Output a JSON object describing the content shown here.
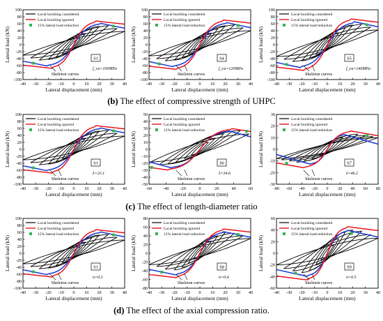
{
  "captions": [
    {
      "letter": "(b)",
      "text": "The effect of compressive strength of UHPC"
    },
    {
      "letter": "(c)",
      "text": "The effect of length-diameter ratio"
    },
    {
      "letter": "(d)",
      "text": "The effect of the axial compression ratio."
    }
  ],
  "legend": {
    "considered": "Local buckling considered",
    "ignored": "Local buckling ignored",
    "reduction": "15% lateral load reduction"
  },
  "axis": {
    "xlabel": "Lateral displacement (mm)",
    "ylabel": "Lateral load (kN)"
  },
  "skeleton_label": "Skeleton curves",
  "colors": {
    "considered": "#000000",
    "ignored": "#e8141c",
    "skeleton": "#1f3fd6",
    "reduction": "#2db84a"
  },
  "chart_data": [
    {
      "type": "line",
      "specimen": "S1",
      "param": "f_cu=100MPa",
      "xlim": [
        -40,
        40
      ],
      "ylim": [
        -100,
        100
      ],
      "xticks": [
        -40,
        -30,
        -20,
        -10,
        0,
        10,
        20,
        30,
        40
      ],
      "yticks": [
        -100,
        -80,
        -60,
        -40,
        -20,
        0,
        20,
        40,
        60,
        80,
        100
      ],
      "peak": 62,
      "peak_x": 20,
      "ignored_peak": 68,
      "ignored_peak_x": 17,
      "loops": [
        [
          -5,
          5,
          18,
          14
        ],
        [
          -9,
          9,
          32,
          26
        ],
        [
          -14,
          14,
          44,
          36
        ],
        [
          -20,
          20,
          52,
          42
        ],
        [
          -27,
          27,
          54,
          44
        ],
        [
          -34,
          34,
          46,
          38
        ],
        [
          -40,
          40,
          38,
          30
        ]
      ],
      "reduction_points": [
        {
          "x": 31,
          "y": 53
        },
        {
          "x": -32,
          "y": -53
        }
      ]
    },
    {
      "type": "line",
      "specimen": "S4",
      "param": "f_cu=120MPa",
      "xlim": [
        -40,
        40
      ],
      "ylim": [
        -100,
        100
      ],
      "xticks": [
        -40,
        -30,
        -20,
        -10,
        0,
        10,
        20,
        30,
        40
      ],
      "yticks": [
        -100,
        -80,
        -60,
        -40,
        -20,
        0,
        20,
        40,
        60,
        80,
        100
      ],
      "peak": 64,
      "peak_x": 20,
      "ignored_peak": 71,
      "ignored_peak_x": 18,
      "loops": [
        [
          -5,
          5,
          19,
          15
        ],
        [
          -9,
          9,
          33,
          27
        ],
        [
          -14,
          14,
          45,
          37
        ],
        [
          -20,
          20,
          54,
          44
        ],
        [
          -27,
          27,
          56,
          46
        ],
        [
          -34,
          34,
          48,
          40
        ],
        [
          -40,
          40,
          40,
          32
        ]
      ],
      "reduction_points": [
        {
          "x": 30,
          "y": 55
        },
        {
          "x": -32,
          "y": -55
        }
      ]
    },
    {
      "type": "line",
      "specimen": "S5",
      "param": "f_cu=140MPa",
      "xlim": [
        -40,
        40
      ],
      "ylim": [
        -100,
        100
      ],
      "xticks": [
        -40,
        -30,
        -20,
        -10,
        0,
        10,
        20,
        30,
        40
      ],
      "yticks": [
        -100,
        -80,
        -60,
        -40,
        -20,
        0,
        20,
        40,
        60,
        80,
        100
      ],
      "peak": 66,
      "peak_x": 21,
      "ignored_peak": 74,
      "ignored_peak_x": 18,
      "loops": [
        [
          -5,
          5,
          20,
          16
        ],
        [
          -9,
          9,
          34,
          28
        ],
        [
          -14,
          14,
          47,
          38
        ],
        [
          -20,
          20,
          56,
          46
        ],
        [
          -27,
          27,
          58,
          48
        ],
        [
          -34,
          34,
          50,
          42
        ],
        [
          -40,
          40,
          42,
          34
        ]
      ],
      "reduction_points": [
        {
          "x": 31,
          "y": 57
        },
        {
          "x": -32,
          "y": -57
        }
      ]
    },
    {
      "type": "line",
      "specimen": "S1",
      "param": "λ=23.1",
      "xlim": [
        -40,
        40
      ],
      "ylim": [
        -100,
        100
      ],
      "xticks": [
        -40,
        -30,
        -20,
        -10,
        0,
        10,
        20,
        30,
        40
      ],
      "yticks": [
        -100,
        -80,
        -60,
        -40,
        -20,
        0,
        20,
        40,
        60,
        80,
        100
      ],
      "peak": 62,
      "peak_x": 20,
      "ignored_peak": 68,
      "ignored_peak_x": 17,
      "loops": [
        [
          -5,
          5,
          18,
          14
        ],
        [
          -9,
          9,
          32,
          26
        ],
        [
          -14,
          14,
          44,
          36
        ],
        [
          -20,
          20,
          52,
          42
        ],
        [
          -27,
          27,
          54,
          44
        ],
        [
          -34,
          34,
          46,
          38
        ],
        [
          -40,
          40,
          38,
          30
        ]
      ],
      "reduction_points": [
        {
          "x": 31,
          "y": 53
        },
        {
          "x": -32,
          "y": -53
        }
      ]
    },
    {
      "type": "line",
      "specimen": "S6",
      "param": "λ=34.6",
      "xlim": [
        -60,
        60
      ],
      "ylim": [
        -50,
        50
      ],
      "xticks": [
        -60,
        -40,
        -20,
        0,
        20,
        40,
        60
      ],
      "yticks": [
        -50,
        -40,
        -30,
        -20,
        -10,
        0,
        10,
        20,
        30,
        40,
        50
      ],
      "peak": 27,
      "peak_x": 32,
      "ignored_peak": 30,
      "ignored_peak_x": 36,
      "loops": [
        [
          -10,
          10,
          10,
          8
        ],
        [
          -18,
          18,
          16,
          13
        ],
        [
          -28,
          28,
          22,
          18
        ],
        [
          -38,
          38,
          26,
          21
        ],
        [
          -48,
          48,
          27,
          22
        ],
        [
          -58,
          58,
          22,
          18
        ]
      ],
      "reduction_points": [
        {
          "x": 55,
          "y": 26
        },
        {
          "x": -57,
          "y": -26
        }
      ]
    },
    {
      "type": "line",
      "specimen": "S7",
      "param": "λ=46.2",
      "xlim": [
        -80,
        80
      ],
      "ylim": [
        -30,
        30
      ],
      "xticks": [
        -80,
        -60,
        -40,
        -20,
        0,
        20,
        40,
        60,
        80
      ],
      "yticks": [
        -30,
        -20,
        -10,
        0,
        10,
        20,
        30
      ],
      "peak": 13,
      "peak_x": 25,
      "ignored_peak": 16,
      "ignored_peak_x": 35,
      "loops": [
        [
          -12,
          12,
          6,
          5
        ],
        [
          -24,
          24,
          10,
          8
        ],
        [
          -36,
          36,
          12,
          10
        ],
        [
          -48,
          48,
          13,
          11
        ],
        [
          -60,
          60,
          12,
          10
        ],
        [
          -72,
          72,
          11,
          9
        ],
        [
          -80,
          80,
          10,
          8
        ]
      ],
      "reduction_points": [
        {
          "x": 63,
          "y": 12
        },
        {
          "x": -64,
          "y": -12
        }
      ]
    },
    {
      "type": "line",
      "specimen": "S1",
      "param": "n=0.3",
      "xlim": [
        -40,
        40
      ],
      "ylim": [
        -100,
        100
      ],
      "xticks": [
        -40,
        -30,
        -20,
        -10,
        0,
        10,
        20,
        30,
        40
      ],
      "yticks": [
        -100,
        -80,
        -60,
        -40,
        -20,
        0,
        20,
        40,
        60,
        80,
        100
      ],
      "peak": 62,
      "peak_x": 20,
      "ignored_peak": 68,
      "ignored_peak_x": 17,
      "loops": [
        [
          -5,
          5,
          18,
          14
        ],
        [
          -9,
          9,
          32,
          26
        ],
        [
          -14,
          14,
          44,
          36
        ],
        [
          -20,
          20,
          52,
          42
        ],
        [
          -27,
          27,
          54,
          44
        ],
        [
          -34,
          34,
          46,
          38
        ],
        [
          -40,
          40,
          38,
          30
        ]
      ],
      "reduction_points": [
        {
          "x": 31,
          "y": 53
        },
        {
          "x": -32,
          "y": -53
        }
      ]
    },
    {
      "type": "line",
      "specimen": "S8",
      "param": "n=0.4",
      "xlim": [
        -40,
        40
      ],
      "ylim": [
        -80,
        80
      ],
      "xticks": [
        -40,
        -30,
        -20,
        -10,
        0,
        10,
        20,
        30,
        40
      ],
      "yticks": [
        -80,
        -60,
        -40,
        -20,
        0,
        20,
        40,
        60,
        80
      ],
      "peak": 50,
      "peak_x": 18,
      "ignored_peak": 56,
      "ignored_peak_x": 18,
      "loops": [
        [
          -5,
          5,
          16,
          12
        ],
        [
          -9,
          9,
          28,
          22
        ],
        [
          -14,
          14,
          40,
          32
        ],
        [
          -20,
          20,
          48,
          38
        ],
        [
          -27,
          27,
          46,
          36
        ],
        [
          -34,
          34,
          40,
          30
        ],
        [
          -40,
          40,
          34,
          26
        ]
      ],
      "reduction_points": [
        {
          "x": 30,
          "y": 43
        },
        {
          "x": -30,
          "y": -43
        }
      ]
    },
    {
      "type": "line",
      "specimen": "S9",
      "param": "n=0.5",
      "xlim": [
        -40,
        40
      ],
      "ylim": [
        -60,
        60
      ],
      "xticks": [
        -40,
        -30,
        -20,
        -10,
        0,
        10,
        20,
        30,
        40
      ],
      "yticks": [
        -60,
        -40,
        -20,
        0,
        20,
        40,
        60
      ],
      "peak": 40,
      "peak_x": 15,
      "ignored_peak": 46,
      "ignored_peak_x": 15,
      "loops": [
        [
          -5,
          5,
          14,
          11
        ],
        [
          -9,
          9,
          25,
          20
        ],
        [
          -14,
          14,
          36,
          29
        ],
        [
          -20,
          20,
          40,
          33
        ],
        [
          -27,
          27,
          38,
          30
        ],
        [
          -34,
          34,
          32,
          26
        ],
        [
          -40,
          40,
          26,
          20
        ]
      ],
      "reduction_points": [
        {
          "x": 19,
          "y": 34
        },
        {
          "x": -25,
          "y": -34
        }
      ]
    }
  ]
}
